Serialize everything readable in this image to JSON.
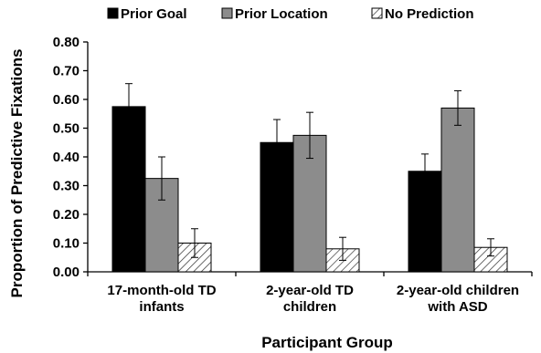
{
  "chart_data": {
    "type": "bar",
    "title": "",
    "xlabel": "Participant Group",
    "ylabel": "Proportion of Predictive Fixations",
    "ylim": [
      0,
      0.8
    ],
    "yticks": [
      "0.00",
      "0.10",
      "0.20",
      "0.30",
      "0.40",
      "0.50",
      "0.60",
      "0.70",
      "0.80"
    ],
    "grid": false,
    "legend_position": "top",
    "categories": [
      [
        "17-month-old TD",
        "infants"
      ],
      [
        "2-year-old TD",
        "children"
      ],
      [
        "2-year-old children",
        "with ASD"
      ]
    ],
    "series": [
      {
        "name": "Prior Goal",
        "color": "#000000",
        "pattern": "solid",
        "values": [
          0.575,
          0.45,
          0.35
        ],
        "errors": [
          0.08,
          0.08,
          0.06
        ]
      },
      {
        "name": "Prior Location",
        "color": "#8c8c8c",
        "pattern": "solid",
        "values": [
          0.325,
          0.475,
          0.57
        ],
        "errors": [
          0.075,
          0.08,
          0.06
        ]
      },
      {
        "name": "No Prediction",
        "color": "#ffffff",
        "pattern": "hatch",
        "values": [
          0.1,
          0.08,
          0.085
        ],
        "errors": [
          0.05,
          0.04,
          0.03
        ]
      }
    ]
  }
}
